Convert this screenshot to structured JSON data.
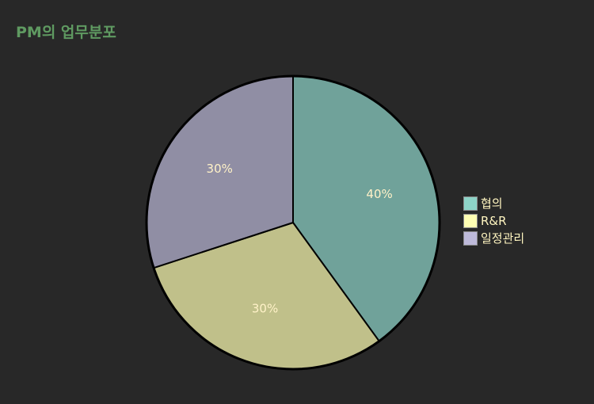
{
  "chart_data": {
    "type": "pie",
    "title": "PM의 업무분포",
    "categories": [
      "협의",
      "R&R",
      "일정관리"
    ],
    "values": [
      40,
      30,
      30
    ],
    "labels": [
      "40%",
      "30%",
      "30%"
    ],
    "colors": [
      "#70a29a",
      "#c0c08a",
      "#908ea4"
    ],
    "legend_colors": [
      "#8dd3c7",
      "#ffffb3",
      "#bebada"
    ],
    "label_color": "#fff2c8",
    "legend_text_color": "#fff5c0",
    "title_color": "#5f9a61",
    "outline_color": "#000000",
    "start_angle_deg": 0,
    "direction": "clockwise",
    "legend_position": "right"
  }
}
